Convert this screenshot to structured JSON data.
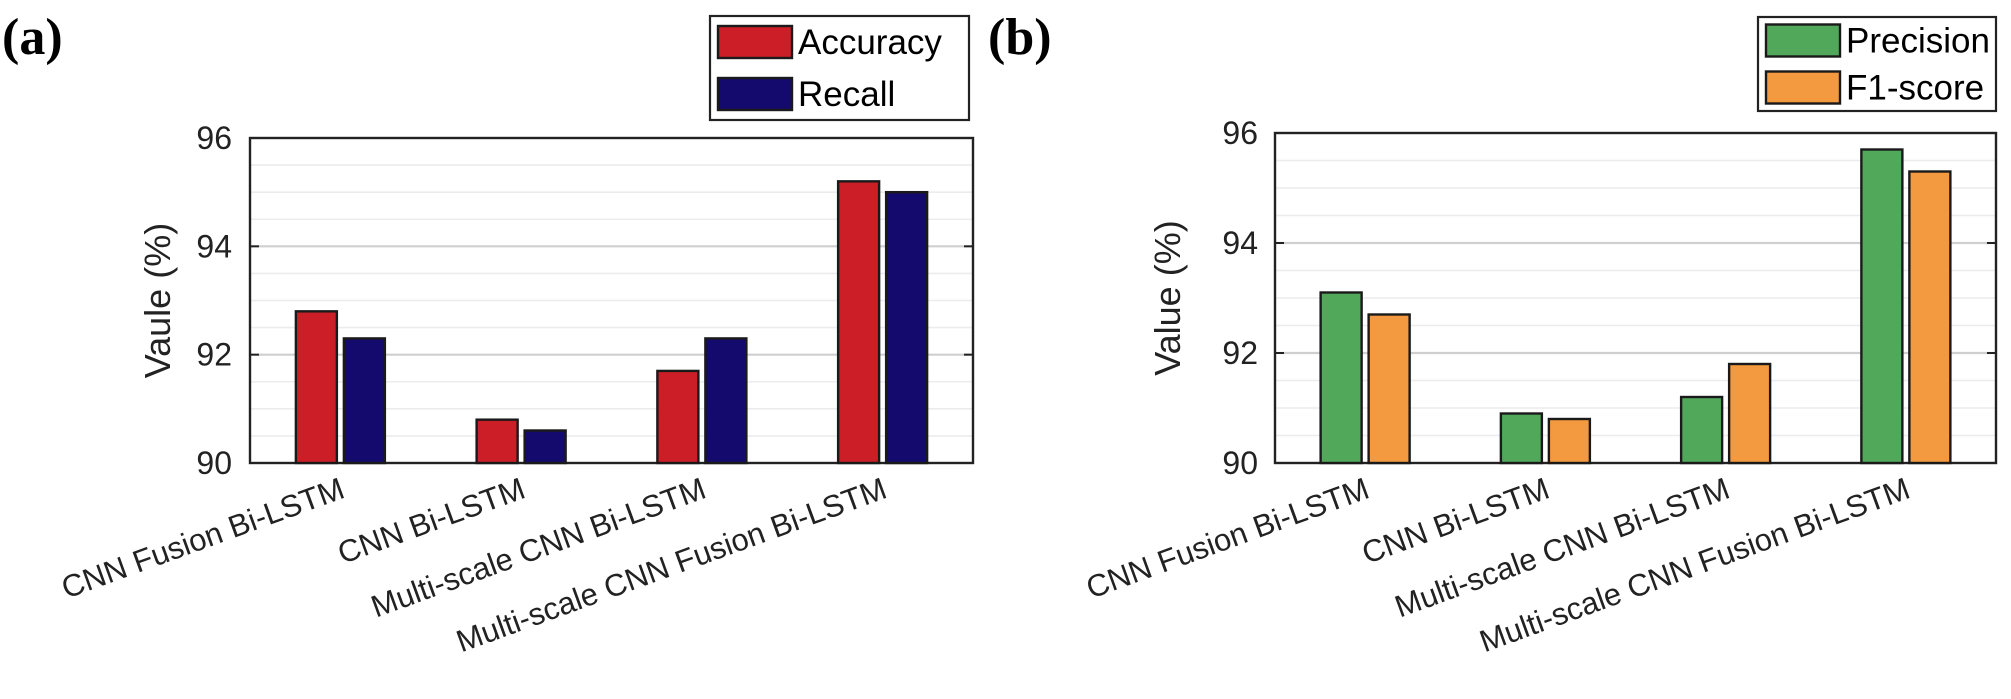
{
  "chart_data": [
    {
      "type": "bar",
      "panel_label": "(a)",
      "ylabel": "Vaule (%)",
      "ylim": [
        90,
        96
      ],
      "yticks": [
        90,
        92,
        94,
        96
      ],
      "grid": true,
      "legend_position": "top-right",
      "categories": [
        "CNN Fusion Bi-LSTM",
        "CNN Bi-LSTM",
        "Multi-scale CNN Bi-LSTM",
        "Multi-scale CNN Fusion Bi-LSTM"
      ],
      "series": [
        {
          "name": "Accuracy",
          "color": "#cc1e26",
          "values": [
            92.8,
            90.8,
            91.7,
            95.2
          ]
        },
        {
          "name": "Recall",
          "color": "#140a6e",
          "values": [
            92.3,
            90.6,
            92.3,
            95.0
          ]
        }
      ]
    },
    {
      "type": "bar",
      "panel_label": "(b)",
      "ylabel": "Value (%)",
      "ylim": [
        90,
        96
      ],
      "yticks": [
        90,
        92,
        94,
        96
      ],
      "grid": true,
      "legend_position": "top-right",
      "categories": [
        "CNN Fusion Bi-LSTM",
        "CNN Bi-LSTM",
        "Multi-scale CNN Bi-LSTM",
        "Multi-scale CNN Fusion Bi-LSTM"
      ],
      "series": [
        {
          "name": "Precision",
          "color": "#52a85a",
          "values": [
            93.1,
            90.9,
            91.2,
            95.7
          ]
        },
        {
          "name": "F1-score",
          "color": "#f39a40",
          "values": [
            92.7,
            90.8,
            91.8,
            95.3
          ]
        }
      ]
    }
  ]
}
